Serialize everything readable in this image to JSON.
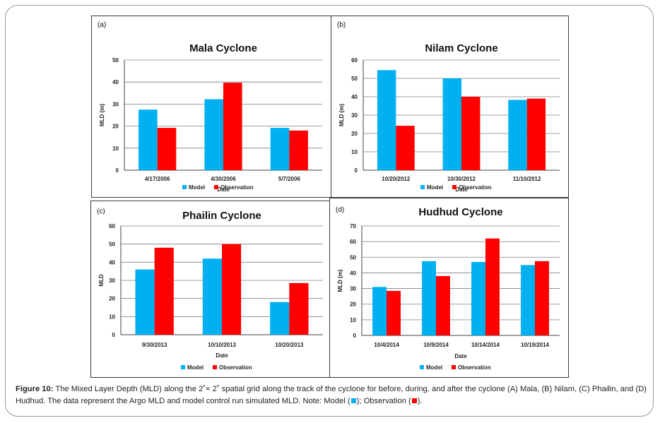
{
  "colors": {
    "model": "#00b0f0",
    "observation": "#ff0000",
    "grid": "#7f7f7f",
    "axis": "#444444"
  },
  "chart_data": [
    {
      "type": "bar",
      "label": "(a)",
      "title": "Mala Cyclone",
      "categories": [
        "4/17/2006",
        "4/30/2006",
        "5/7/2006"
      ],
      "series": [
        {
          "name": "Model",
          "values": [
            27.5,
            32.2,
            19.2
          ]
        },
        {
          "name": "Observation",
          "values": [
            19.2,
            39.7,
            18.0
          ]
        }
      ],
      "xlabel": "Date",
      "ylabel": "MLD (m)",
      "ylim": [
        0,
        50
      ],
      "yticks": [
        "0",
        "10",
        "20",
        "30",
        "40",
        "50"
      ],
      "grid": true,
      "legend": "bottom"
    },
    {
      "type": "bar",
      "label": "(b)",
      "title": "Nilam Cyclone",
      "categories": [
        "10/20/2012",
        "10/30/2012",
        "11/10/2012"
      ],
      "series": [
        {
          "name": "Model",
          "values": [
            54.5,
            50.0,
            38.3
          ]
        },
        {
          "name": "Observation",
          "values": [
            24.2,
            40.0,
            39.0
          ]
        }
      ],
      "xlabel": "Date",
      "ylabel": "MLD (m)",
      "ylim": [
        0,
        60
      ],
      "yticks": [
        "0",
        "10",
        "20",
        "30",
        "40",
        "50",
        "60"
      ],
      "grid": true,
      "legend": "bottom"
    },
    {
      "type": "bar",
      "label": "(c)",
      "title": "Phailin Cyclone",
      "categories": [
        "9/30/2013",
        "10/10/2013",
        "10/20/2013"
      ],
      "series": [
        {
          "name": "Model",
          "values": [
            36.0,
            42.0,
            18.0
          ]
        },
        {
          "name": "Observation",
          "values": [
            48.0,
            50.0,
            28.5
          ]
        }
      ],
      "xlabel": "Date",
      "ylabel": "MLD",
      "ylim": [
        0,
        60
      ],
      "yticks": [
        "0",
        "10",
        "20",
        "30",
        "40",
        "50",
        "60"
      ],
      "grid": true,
      "legend": "bottom"
    },
    {
      "type": "bar",
      "label": "(d)",
      "title": "Hudhud Cyclone",
      "categories": [
        "10/4/2014",
        "10/9/2014",
        "10/14/2014",
        "10/19/2014"
      ],
      "series": [
        {
          "name": "Model",
          "values": [
            31.0,
            47.5,
            47.0,
            45.0
          ]
        },
        {
          "name": "Observation",
          "values": [
            28.5,
            38.0,
            62.0,
            47.5
          ]
        }
      ],
      "xlabel": "Date",
      "ylabel": "MLD (m)",
      "ylim": [
        0,
        70
      ],
      "yticks": [
        "0",
        "10",
        "20",
        "30",
        "40",
        "50",
        "60",
        "70"
      ],
      "grid": true,
      "legend": "bottom"
    }
  ],
  "caption": {
    "label": "Figure 10:",
    "text": "The Mixed Layer Depth (MLD) along the 2˚× 2˚ spatial grid along the track of the cyclone for before, during, and after the cyclone (A) Mala, (B) Nilam, (C) Phailin, and (D) Hudhud. The data represent the Argo MLD and model control run simulated MLD. Note: Model (",
    "mid": "); Observation (",
    "end": ")."
  }
}
